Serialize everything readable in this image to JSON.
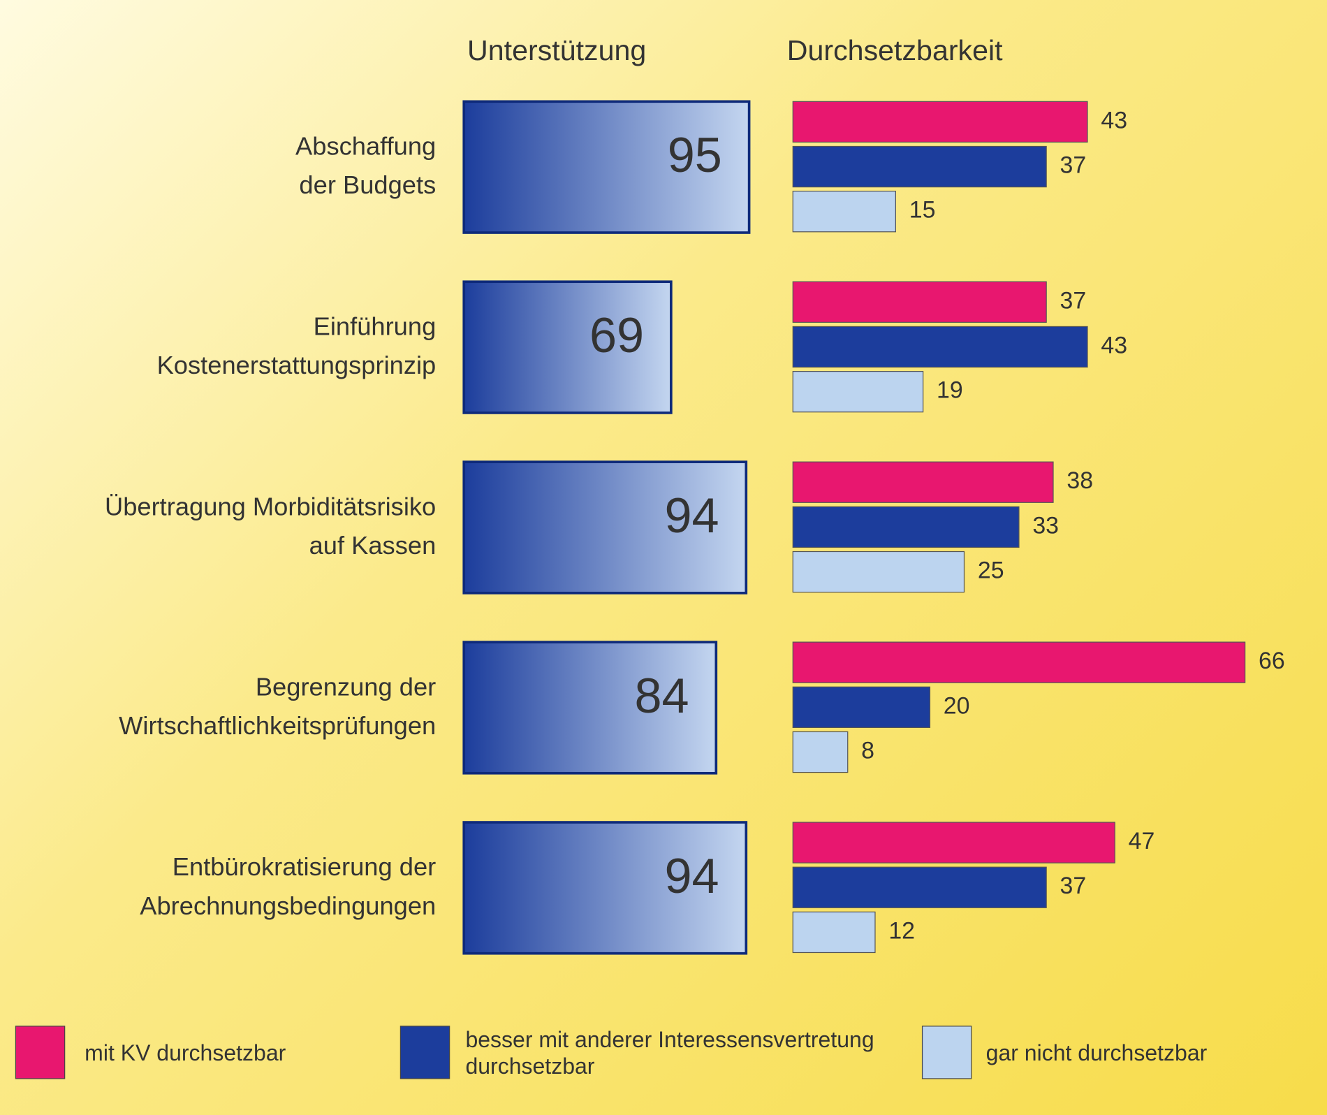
{
  "chart_data": {
    "type": "bar",
    "categories": [
      [
        "Abschaffung",
        "der Budgets"
      ],
      [
        "Einführung",
        "Kostenerstattungsprinzip"
      ],
      [
        "Übertragung Morbiditätsrisiko",
        "auf Kassen"
      ],
      [
        "Begrenzung der",
        "Wirtschaftlichkeitsprüfungen"
      ],
      [
        "Entbürokratisierung der",
        "Abrechnungsbedingungen"
      ]
    ],
    "panels": [
      {
        "title": "Unterstützung",
        "xlim": [
          0,
          100
        ],
        "series": [
          {
            "color": "#1c3d9c",
            "values": [
              95,
              69,
              94,
              84,
              94
            ]
          }
        ]
      },
      {
        "title": "Durchsetzbarkeit",
        "xlim": [
          0,
          70
        ],
        "series": [
          {
            "name": "mit KV durchsetzbar",
            "color": "#e8176f",
            "values": [
              43,
              37,
              38,
              66,
              47
            ]
          },
          {
            "name": "besser mit anderer Interessensvertretung durchsetzbar",
            "color": "#1c3d9c",
            "values": [
              37,
              43,
              33,
              20,
              37
            ]
          },
          {
            "name": "gar nicht durchsetzbar",
            "color": "#bcd4ef",
            "values": [
              15,
              19,
              25,
              8,
              12
            ]
          }
        ]
      }
    ]
  }
}
